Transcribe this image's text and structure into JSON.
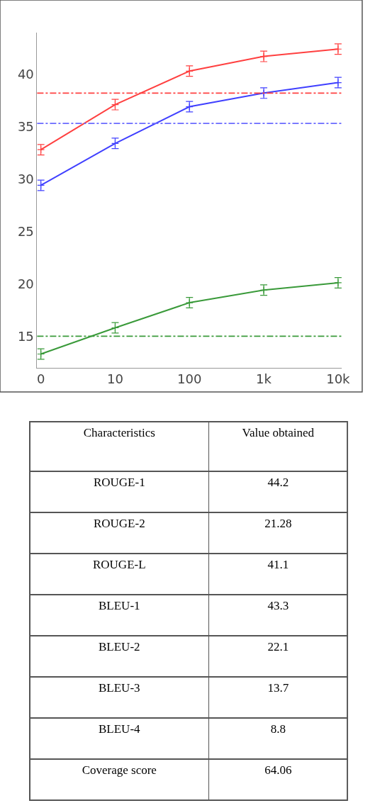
{
  "chart_data": [
    {
      "type": "line",
      "categories": [
        "0",
        "10",
        "100",
        "1k",
        "10k"
      ],
      "ylim": [
        12,
        44
      ],
      "yticks": [
        15,
        20,
        25,
        30,
        35,
        40
      ],
      "marker": "cross",
      "line_style": "solid",
      "series": [
        {
          "color": "#ff4040",
          "values": [
            32.8,
            37.1,
            40.3,
            41.7,
            42.4
          ],
          "errors": [
            0.5,
            0.5,
            0.5,
            0.5,
            0.5
          ]
        },
        {
          "color": "#4040ff",
          "values": [
            29.4,
            33.4,
            36.9,
            38.2,
            39.2
          ],
          "errors": [
            0.5,
            0.5,
            0.5,
            0.5,
            0.5
          ]
        },
        {
          "color": "#3a9a3a",
          "values": [
            13.3,
            15.8,
            18.2,
            19.4,
            20.1
          ],
          "errors": [
            0.5,
            0.5,
            0.5,
            0.5,
            0.5
          ]
        }
      ],
      "ref_lines": [
        {
          "axis": "y",
          "value": 38.2,
          "color": "#ff4040",
          "line_style": "dashed"
        },
        {
          "axis": "y",
          "value": 35.3,
          "color": "#6a6aff",
          "line_style": "dashed"
        },
        {
          "axis": "y",
          "value": 15.0,
          "color": "#3a9a3a",
          "line_style": "dashed"
        }
      ]
    },
    {
      "type": "other",
      "xlabel": "Characteristics",
      "ylabel": "Value obtained",
      "data_labels": true,
      "categories": [
        "ROUGE-1",
        "ROUGE-2",
        "ROUGE-L",
        "BLEU-1",
        "BLEU-2",
        "BLEU-3",
        "BLEU-4",
        "Coverage score"
      ],
      "values": [
        44.2,
        21.28,
        41.1,
        43.3,
        22.1,
        13.7,
        8.8,
        64.06
      ]
    }
  ]
}
